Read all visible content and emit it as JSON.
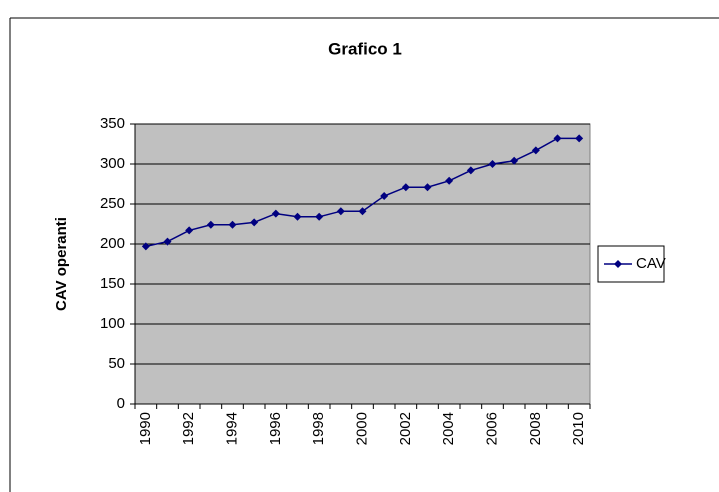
{
  "chart_data": {
    "type": "line",
    "title": "Grafico 1",
    "y_label": "CAV operanti",
    "categories": [
      "1990",
      null,
      "1992",
      null,
      "1994",
      null,
      "1996",
      null,
      "1998",
      null,
      "2000",
      null,
      "2002",
      null,
      "2004",
      null,
      "2006",
      null,
      "2008",
      null,
      "2010"
    ],
    "series": [
      {
        "name": "CAV",
        "color": "#000080",
        "values": [
          197,
          203,
          217,
          224,
          224,
          227,
          238,
          234,
          234,
          241,
          241,
          260,
          271,
          271,
          279,
          292,
          300,
          304,
          317,
          332,
          332
        ]
      }
    ],
    "ylim": [
      0,
      350
    ],
    "yticks": [
      0,
      50,
      100,
      150,
      200,
      250,
      300,
      350
    ],
    "grid": true,
    "legend": "right"
  }
}
